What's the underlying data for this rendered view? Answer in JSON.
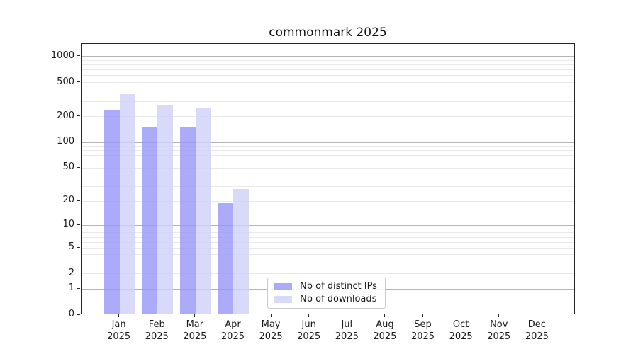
{
  "chart_data": {
    "type": "bar",
    "title": "commonmark 2025",
    "categories": [
      "Jan",
      "Feb",
      "Mar",
      "Apr",
      "May",
      "Jun",
      "Jul",
      "Aug",
      "Sep",
      "Oct",
      "Nov",
      "Dec"
    ],
    "category_year": "2025",
    "series": [
      {
        "name": "Nb of distinct IPs",
        "color": "rgba(150,150,247,0.8)",
        "values": [
          233,
          148,
          147,
          18,
          0,
          0,
          0,
          0,
          0,
          0,
          0,
          0
        ]
      },
      {
        "name": "Nb of downloads",
        "color": "rgba(208,208,247,0.8)",
        "values": [
          354,
          266,
          241,
          27,
          0,
          0,
          0,
          0,
          0,
          0,
          0,
          0
        ]
      }
    ],
    "y_scale": "log1p",
    "y_axis": {
      "ticks": [
        1000,
        500,
        200,
        100,
        50,
        20,
        10,
        5,
        2,
        1,
        0
      ],
      "major_gridlines": [
        1000,
        100,
        10,
        1
      ],
      "minor_gridlines": [
        900,
        800,
        700,
        600,
        500,
        400,
        300,
        200,
        90,
        80,
        70,
        60,
        50,
        40,
        30,
        20,
        9,
        8,
        7,
        6,
        5,
        4,
        3,
        2
      ]
    },
    "grid": true,
    "legend_position": "lower center",
    "colors": {
      "bar_distinct_ips": "rgba(150,150,247,0.8)",
      "bar_downloads": "rgba(208,208,247,0.8)",
      "major_grid": "#b4b4b4",
      "minor_grid": "#e9e9e9",
      "spine": "#262626",
      "text": "#1a1a1a"
    }
  }
}
